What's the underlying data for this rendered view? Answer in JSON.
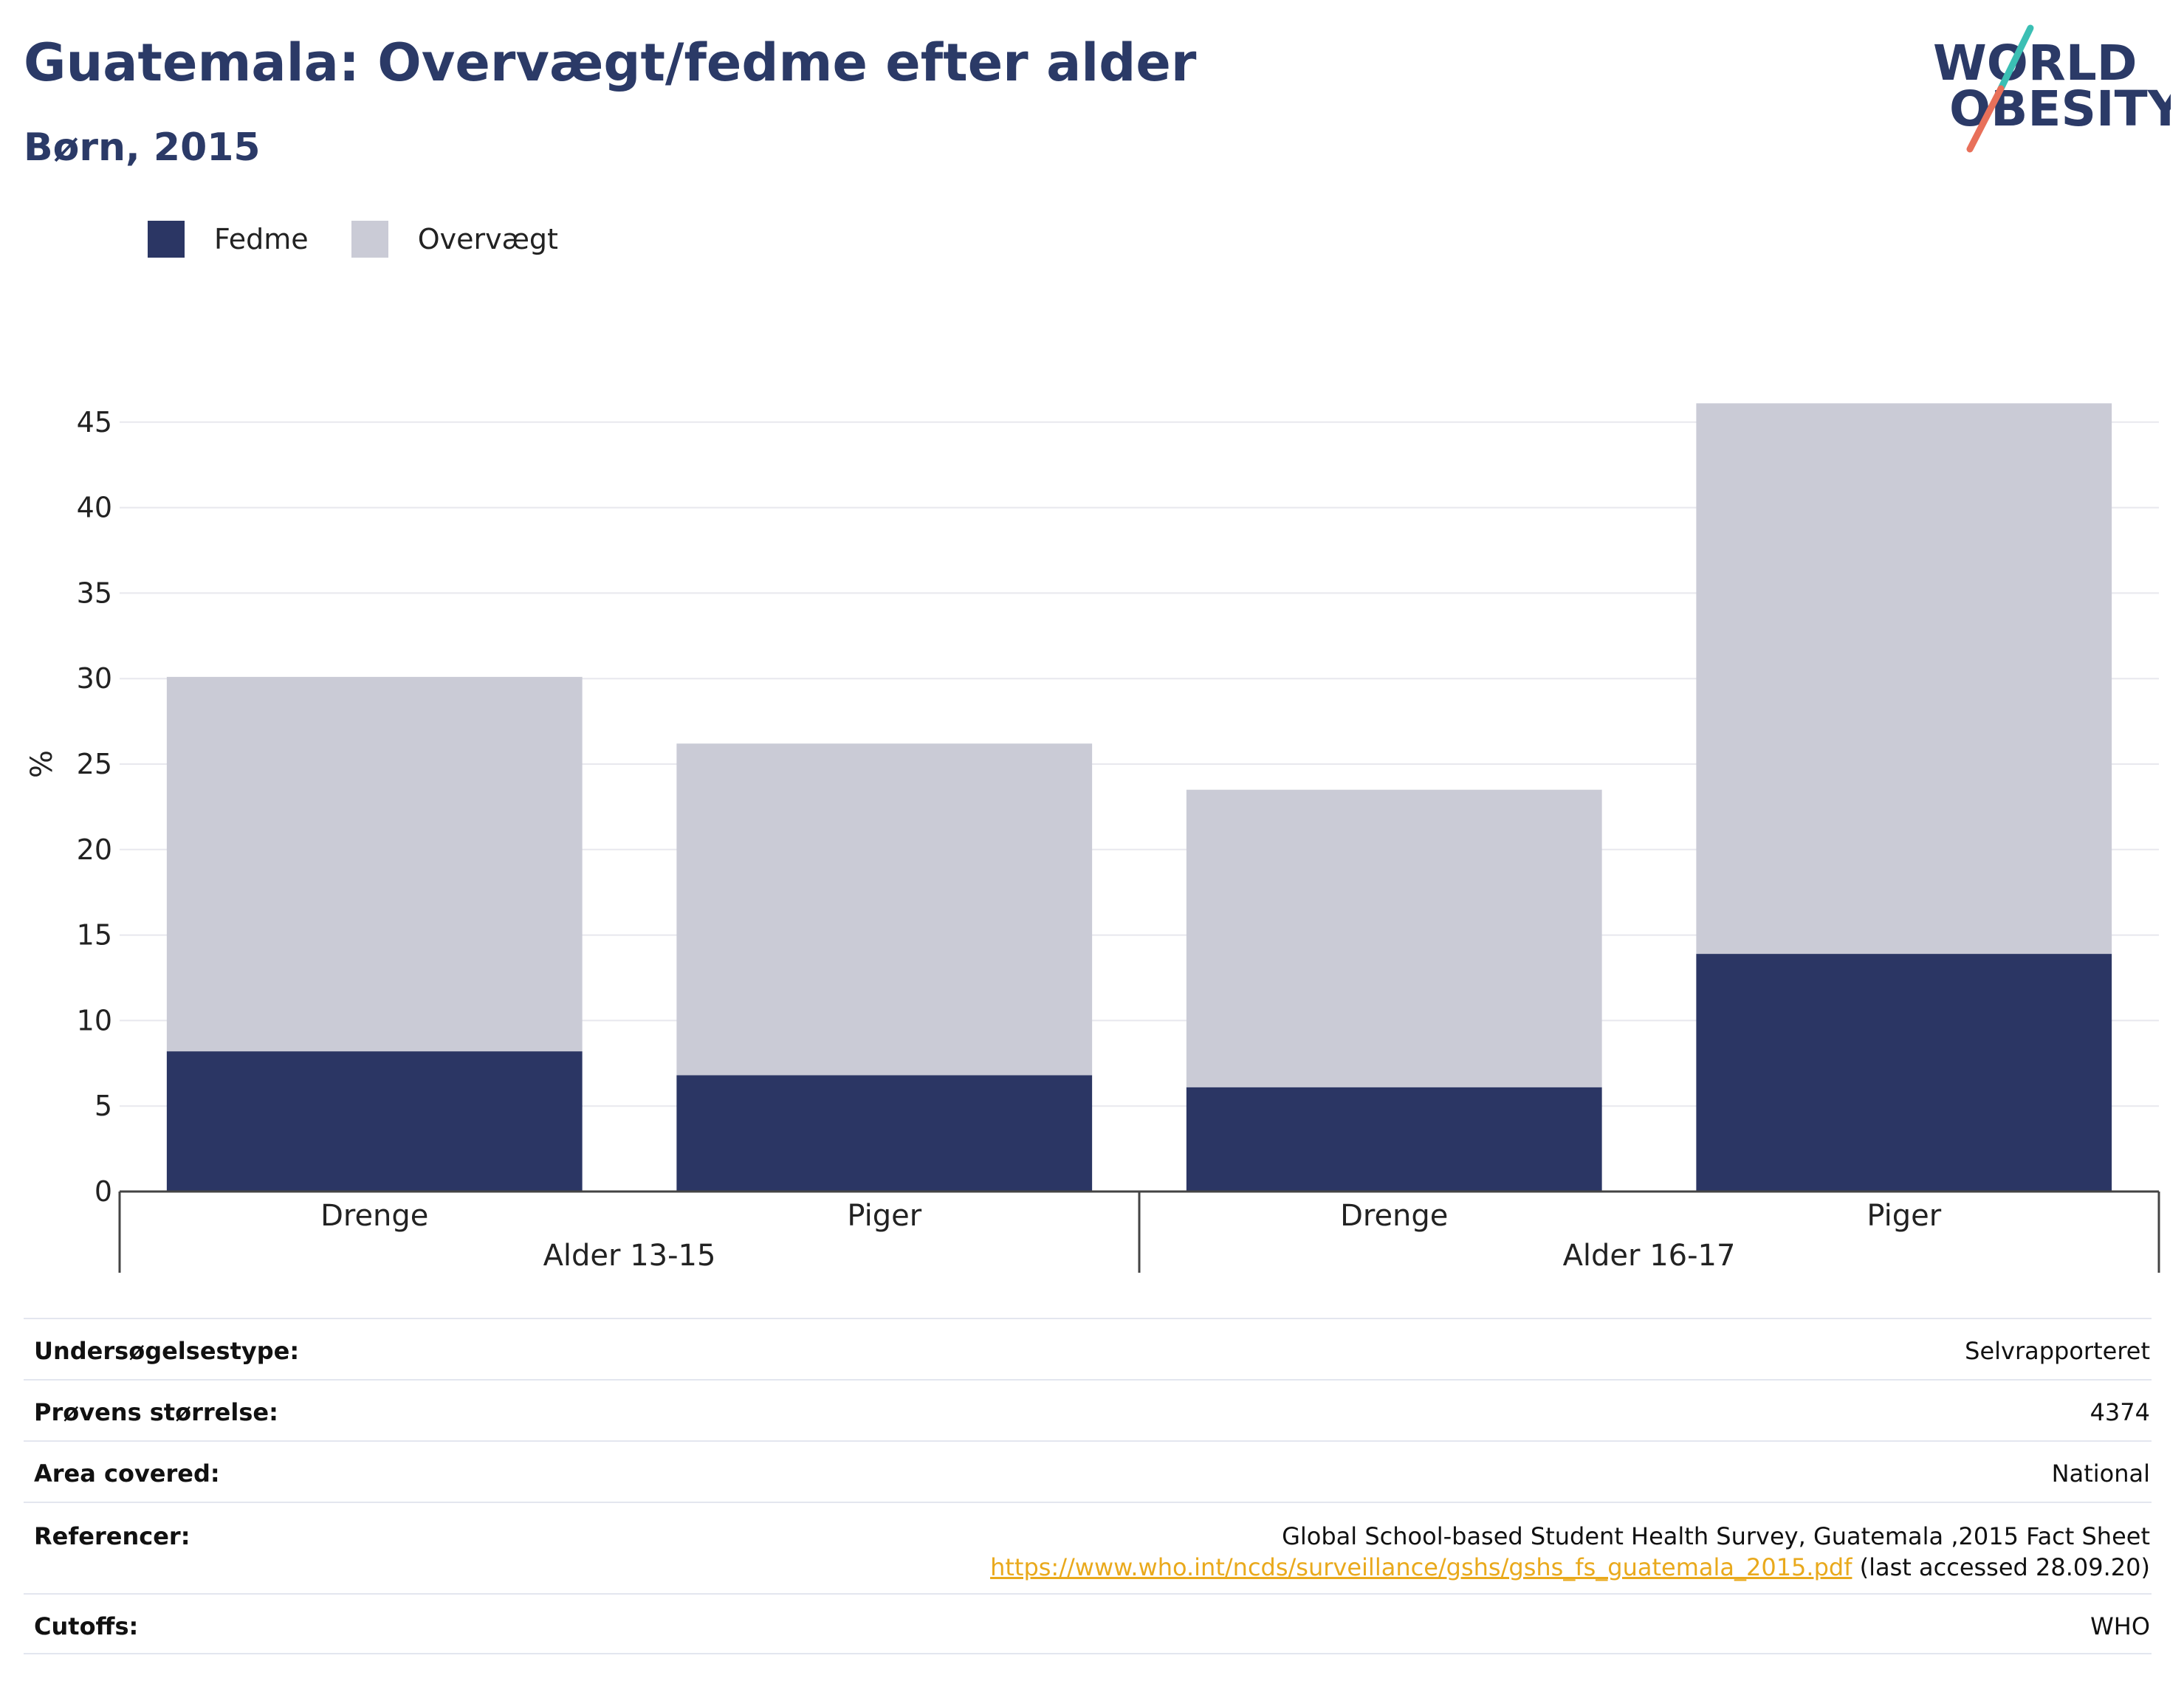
{
  "header": {
    "title": "Guatemala: Overvægt/fedme efter alder",
    "subtitle": "Børn, 2015"
  },
  "logo": {
    "line1": "WORLD",
    "line2": "OBESITY",
    "colors": {
      "text": "#2b3a67",
      "slash_teal": "#3bbfb4",
      "slash_coral": "#e8705a"
    }
  },
  "legend": [
    {
      "label": "Fedme",
      "color": "#2b3664"
    },
    {
      "label": "Overvægt",
      "color": "#cacbd6"
    }
  ],
  "chart_data": {
    "type": "bar",
    "stacked": true,
    "ylabel": "%",
    "ylim": [
      0,
      47
    ],
    "yticks": [
      0,
      5,
      10,
      15,
      20,
      25,
      30,
      35,
      40,
      45
    ],
    "grid": true,
    "legend_position": "top-left",
    "categories": [
      "Drenge",
      "Piger",
      "Drenge",
      "Piger"
    ],
    "groups": [
      {
        "label": "Alder 13-15",
        "categories": [
          0,
          1
        ]
      },
      {
        "label": "Alder 16-17",
        "categories": [
          2,
          3
        ]
      }
    ],
    "series": [
      {
        "name": "Fedme",
        "color": "#2b3664",
        "values": [
          8.2,
          6.8,
          6.1,
          13.9
        ]
      },
      {
        "name": "Overvægt",
        "color": "#cacbd6",
        "values": [
          21.9,
          19.4,
          17.4,
          32.2
        ]
      }
    ]
  },
  "meta": {
    "survey_type": {
      "label": "Undersøgelsestype:",
      "value": "Selvrapporteret"
    },
    "sample_size": {
      "label": "Prøvens størrelse:",
      "value": "4374"
    },
    "area": {
      "label": "Area covered:",
      "value": "National"
    },
    "references": {
      "label": "Referencer:",
      "line1": "Global School-based Student Health Survey, Guatemala ,2015 Fact Sheet",
      "link": "https://www.who.int/ncds/surveillance/gshs/gshs_fs_guatemala_2015.pdf",
      "suffix": " (last accessed 28.09.20)"
    },
    "cutoffs": {
      "label": "Cutoffs:",
      "value": "WHO"
    }
  }
}
